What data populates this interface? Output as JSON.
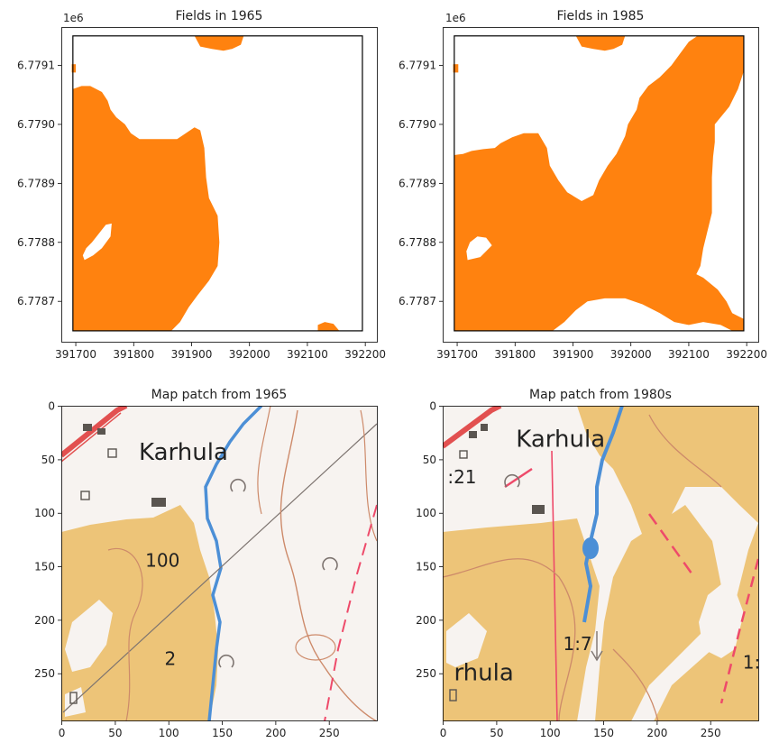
{
  "figure": {
    "background": "#ffffff",
    "field_color": "#ff820f",
    "frame_color": "#000000"
  },
  "chart_data": [
    {
      "type": "map",
      "title": "Fields in 1965",
      "x_ticks": [
        391700,
        391800,
        391900,
        392000,
        392100,
        392200
      ],
      "x_tick_labels": [
        "391700",
        "391800",
        "391900",
        "392000",
        "392100",
        "392200"
      ],
      "y_ticks": [
        6778700,
        6778800,
        6778900,
        6779000,
        6779100
      ],
      "y_tick_labels": [
        "6.7787",
        "6.7788",
        "6.7789",
        "6.7790",
        "6.7791"
      ],
      "y_offset_label": "1e6",
      "xlim": [
        391675,
        392220
      ],
      "ylim": [
        6778630,
        6779165
      ],
      "frame": {
        "x": [
          391695,
          392195
        ],
        "y": [
          6778650,
          6779150
        ]
      },
      "fields": [
        {
          "name": "field-west",
          "points": [
            [
              391695,
              6778650
            ],
            [
              391865,
              6778650
            ],
            [
              391880,
              6778665
            ],
            [
              391895,
              6778690
            ],
            [
              391910,
              6778710
            ],
            [
              391930,
              6778735
            ],
            [
              391945,
              6778760
            ],
            [
              391948,
              6778800
            ],
            [
              391945,
              6778845
            ],
            [
              391930,
              6778875
            ],
            [
              391925,
              6778910
            ],
            [
              391922,
              6778960
            ],
            [
              391915,
              6778990
            ],
            [
              391905,
              6778995
            ],
            [
              391890,
              6778985
            ],
            [
              391875,
              6778975
            ],
            [
              391850,
              6778975
            ],
            [
              391830,
              6778975
            ],
            [
              391810,
              6778975
            ],
            [
              391795,
              6778985
            ],
            [
              391785,
              6779000
            ],
            [
              391770,
              6779012
            ],
            [
              391760,
              6779025
            ],
            [
              391755,
              6779040
            ],
            [
              391745,
              6779055
            ],
            [
              391725,
              6779065
            ],
            [
              391710,
              6779065
            ],
            [
              391695,
              6779060
            ]
          ]
        },
        {
          "name": "field-north",
          "points": [
            [
              391905,
              6779150
            ],
            [
              391990,
              6779150
            ],
            [
              391985,
              6779135
            ],
            [
              391970,
              6779128
            ],
            [
              391955,
              6779125
            ],
            [
              391935,
              6779128
            ],
            [
              391915,
              6779132
            ]
          ]
        },
        {
          "name": "field-southeast",
          "points": [
            [
              392118,
              6778650
            ],
            [
              392155,
              6778650
            ],
            [
              392145,
              6778662
            ],
            [
              392130,
              6778665
            ],
            [
              392118,
              6778660
            ]
          ]
        },
        {
          "name": "field-speck",
          "points": [
            [
              391693,
              6779088
            ],
            [
              391700,
              6779088
            ],
            [
              391700,
              6779102
            ],
            [
              391693,
              6779102
            ]
          ]
        }
      ],
      "holes": [
        {
          "name": "hole-west",
          "points": [
            [
              391715,
              6778770
            ],
            [
              391730,
              6778778
            ],
            [
              391745,
              6778790
            ],
            [
              391760,
              6778810
            ],
            [
              391762,
              6778832
            ],
            [
              391752,
              6778830
            ],
            [
              391740,
              6778815
            ],
            [
              391728,
              6778800
            ],
            [
              391718,
              6778790
            ],
            [
              391712,
              6778778
            ]
          ]
        }
      ]
    },
    {
      "type": "map",
      "title": "Fields in 1985",
      "x_ticks": [
        391700,
        391800,
        391900,
        392000,
        392100,
        392200
      ],
      "x_tick_labels": [
        "391700",
        "391800",
        "391900",
        "392000",
        "392100",
        "392200"
      ],
      "y_ticks": [
        6778700,
        6778800,
        6778900,
        6779000,
        6779100
      ],
      "y_tick_labels": [
        "6.7787",
        "6.7788",
        "6.7789",
        "6.7790",
        "6.7791"
      ],
      "y_offset_label": "1e6",
      "xlim": [
        391675,
        392220
      ],
      "ylim": [
        6778630,
        6779165
      ],
      "frame": {
        "x": [
          391695,
          392195
        ],
        "y": [
          6778650,
          6779150
        ]
      },
      "fields": [
        {
          "name": "field-main",
          "points": [
            [
              391695,
              6778650
            ],
            [
              391865,
              6778650
            ],
            [
              391885,
              6778665
            ],
            [
              391905,
              6778685
            ],
            [
              391925,
              6778700
            ],
            [
              391955,
              6778705
            ],
            [
              391990,
              6778705
            ],
            [
              392020,
              6778695
            ],
            [
              392050,
              6778680
            ],
            [
              392075,
              6778665
            ],
            [
              392100,
              6778660
            ],
            [
              392125,
              6778665
            ],
            [
              392155,
              6778660
            ],
            [
              392175,
              6778650
            ],
            [
              392195,
              6778650
            ],
            [
              392195,
              6778670
            ],
            [
              392175,
              6778680
            ],
            [
              392165,
              6778700
            ],
            [
              392150,
              6778720
            ],
            [
              392125,
              6778740
            ],
            [
              392105,
              6778750
            ],
            [
              392080,
              6778750
            ],
            [
              392055,
              6778738
            ],
            [
              392040,
              6778720
            ],
            [
              392055,
              6778700
            ],
            [
              392085,
              6778720
            ],
            [
              392110,
              6778740
            ],
            [
              392120,
              6778760
            ],
            [
              392125,
              6778790
            ],
            [
              392130,
              6778810
            ],
            [
              392135,
              6778830
            ],
            [
              392140,
              6778850
            ],
            [
              392140,
              6778880
            ],
            [
              392140,
              6778910
            ],
            [
              392142,
              6778945
            ],
            [
              392145,
              6778970
            ],
            [
              392145,
              6779000
            ],
            [
              392170,
              6779030
            ],
            [
              392185,
              6779060
            ],
            [
              392195,
              6779090
            ],
            [
              392195,
              6779150
            ],
            [
              392115,
              6779150
            ],
            [
              392100,
              6779140
            ],
            [
              392085,
              6779120
            ],
            [
              392070,
              6779100
            ],
            [
              392050,
              6779080
            ],
            [
              392030,
              6779065
            ],
            [
              392015,
              6779045
            ],
            [
              392010,
              6779025
            ],
            [
              391995,
              6779000
            ],
            [
              391990,
              6778980
            ],
            [
              391975,
              6778950
            ],
            [
              391960,
              6778930
            ],
            [
              391945,
              6778905
            ],
            [
              391935,
              6778880
            ],
            [
              391915,
              6778870
            ],
            [
              391890,
              6778885
            ],
            [
              391875,
              6778905
            ],
            [
              391860,
              6778930
            ],
            [
              391855,
              6778960
            ],
            [
              391840,
              6778985
            ],
            [
              391815,
              6778985
            ],
            [
              391795,
              6778978
            ],
            [
              391775,
              6778968
            ],
            [
              391765,
              6778960
            ],
            [
              391745,
              6778958
            ],
            [
              391725,
              6778955
            ],
            [
              391710,
              6778950
            ],
            [
              391695,
              6778948
            ]
          ]
        },
        {
          "name": "field-north",
          "points": [
            [
              391905,
              6779150
            ],
            [
              391990,
              6779150
            ],
            [
              391985,
              6779135
            ],
            [
              391970,
              6779128
            ],
            [
              391955,
              6779125
            ],
            [
              391935,
              6779128
            ],
            [
              391915,
              6779132
            ]
          ]
        },
        {
          "name": "field-speck",
          "points": [
            [
              391693,
              6779088
            ],
            [
              391702,
              6779088
            ],
            [
              391702,
              6779102
            ],
            [
              391693,
              6779102
            ]
          ]
        }
      ],
      "holes": [
        {
          "name": "hole-west",
          "points": [
            [
              391718,
              6778770
            ],
            [
              391740,
              6778775
            ],
            [
              391760,
              6778795
            ],
            [
              391750,
              6778808
            ],
            [
              391735,
              6778810
            ],
            [
              391722,
              6778800
            ],
            [
              391716,
              6778785
            ]
          ]
        }
      ]
    },
    {
      "type": "image",
      "title": "Map patch from 1965",
      "x_ticks": [
        0,
        50,
        100,
        150,
        200,
        250
      ],
      "x_tick_labels": [
        "0",
        "50",
        "100",
        "150",
        "200",
        "250"
      ],
      "y_ticks": [
        0,
        50,
        100,
        150,
        200,
        250
      ],
      "y_tick_labels": [
        "0",
        "50",
        "100",
        "150",
        "200",
        "250"
      ],
      "xlim": [
        -0.5,
        294.5
      ],
      "ylim": [
        294.5,
        -0.5
      ],
      "labels": [
        {
          "name": "place-name",
          "text": "Karhula",
          "x": 72,
          "y": 50,
          "color": "#5a5550"
        },
        {
          "name": "contour-label",
          "text": "100",
          "x": 78,
          "y": 150,
          "color": "#c87a55"
        },
        {
          "name": "number-label",
          "text": "2",
          "x": 96,
          "y": 242,
          "color": "#e8456a"
        }
      ]
    },
    {
      "type": "image",
      "title": "Map patch from 1980s",
      "x_ticks": [
        0,
        50,
        100,
        150,
        200,
        250
      ],
      "x_tick_labels": [
        "0",
        "50",
        "100",
        "150",
        "200",
        "250"
      ],
      "y_ticks": [
        0,
        50,
        100,
        150,
        200,
        250
      ],
      "y_tick_labels": [
        "0",
        "50",
        "100",
        "150",
        "200",
        "250"
      ],
      "xlim": [
        -0.5,
        294.5
      ],
      "ylim": [
        294.5,
        -0.5
      ],
      "labels": [
        {
          "name": "place-name-top",
          "text": "Karhula",
          "x": 68,
          "y": 38,
          "color": "#5a5550"
        },
        {
          "name": "place-name-bottom",
          "text": "rhula",
          "x": 10,
          "y": 256,
          "color": "#ee4a6a"
        },
        {
          "name": "scale-label",
          "text": "1:7",
          "x": 112,
          "y": 228,
          "color": "#ee4a6a"
        },
        {
          "name": "edge-label",
          "text": "1:",
          "x": 280,
          "y": 245,
          "color": "#ee4a6a"
        },
        {
          "name": "edge-label-left",
          "text": ":21",
          "x": 4,
          "y": 72,
          "color": "#ee4a6a"
        }
      ]
    }
  ],
  "map_palette": {
    "paper": "#f7f3f0",
    "field": "#edc478",
    "road": "#e25050",
    "river": "#4c8fd6",
    "contour": "#cd8a6a",
    "text": "#5a5550",
    "red_marking": "#ee4a6a",
    "line": "#7d7470"
  }
}
